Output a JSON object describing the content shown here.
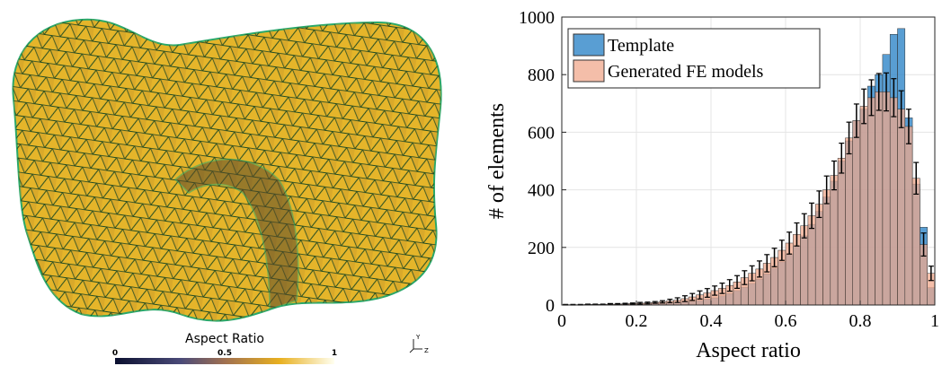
{
  "mesh_panel": {
    "colorbar": {
      "title": "Aspect Ratio",
      "lim": [
        0,
        1
      ],
      "ticks": [
        0,
        0.5,
        1
      ]
    },
    "triad": {
      "y_label": "Y",
      "z_label": "Z"
    }
  },
  "chart_data": {
    "type": "histogram",
    "xlabel": "Aspect ratio",
    "ylabel": "# of elements",
    "bins": [
      0,
      0.02,
      0.04,
      0.06,
      0.08,
      0.1,
      0.12,
      0.14,
      0.16,
      0.18,
      0.2,
      0.22,
      0.24,
      0.26,
      0.28,
      0.3,
      0.32,
      0.34,
      0.36,
      0.38,
      0.4,
      0.42,
      0.44,
      0.46,
      0.48,
      0.5,
      0.52,
      0.54,
      0.56,
      0.58,
      0.6,
      0.62,
      0.64,
      0.66,
      0.68,
      0.7,
      0.72,
      0.74,
      0.76,
      0.78,
      0.8,
      0.82,
      0.84,
      0.86,
      0.88,
      0.9,
      0.92,
      0.94,
      0.96,
      0.98,
      1
    ],
    "series": [
      {
        "name": "Template",
        "color": "#2f86c8",
        "alpha": 0.8,
        "values": [
          0,
          0,
          0,
          1,
          1,
          1,
          1,
          2,
          2,
          3,
          3,
          4,
          5,
          6,
          7,
          9,
          11,
          13,
          16,
          20,
          25,
          32,
          40,
          50,
          62,
          75,
          90,
          108,
          128,
          150,
          175,
          205,
          240,
          280,
          325,
          375,
          430,
          500,
          570,
          640,
          680,
          760,
          800,
          870,
          940,
          960,
          650,
          420,
          270,
          60
        ]
      },
      {
        "name": "Generated FE models",
        "color": "#f0a88c",
        "alpha": 0.75,
        "values": [
          1,
          1,
          1,
          2,
          2,
          2,
          3,
          3,
          4,
          5,
          6,
          7,
          9,
          11,
          14,
          17,
          22,
          28,
          35,
          42,
          50,
          58,
          68,
          80,
          95,
          110,
          125,
          145,
          165,
          190,
          215,
          245,
          275,
          310,
          350,
          400,
          450,
          510,
          580,
          640,
          690,
          720,
          740,
          740,
          720,
          680,
          620,
          440,
          210,
          110
        ],
        "errors": [
          1,
          1,
          1,
          1,
          1,
          1,
          2,
          2,
          2,
          2,
          3,
          3,
          3,
          4,
          6,
          8,
          10,
          12,
          14,
          15,
          16,
          18,
          20,
          22,
          24,
          26,
          28,
          30,
          32,
          35,
          38,
          40,
          42,
          44,
          46,
          48,
          50,
          52,
          55,
          58,
          60,
          62,
          64,
          66,
          66,
          64,
          60,
          55,
          40,
          25
        ]
      }
    ],
    "xlim": [
      0,
      1
    ],
    "ylim": [
      0,
      1000
    ],
    "xticks": [
      0,
      0.2,
      0.4,
      0.6,
      0.8,
      1
    ],
    "yticks": [
      0,
      200,
      400,
      600,
      800,
      1000
    ],
    "grid": true,
    "legend_location": "northwest"
  }
}
